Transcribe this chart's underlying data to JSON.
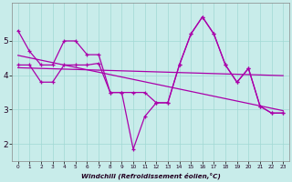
{
  "bg_color": "#c8ecea",
  "line_color": "#aa00aa",
  "xlabel": "Windchill (Refroidissement éolien,°C)",
  "x": [
    0,
    1,
    2,
    3,
    4,
    5,
    6,
    7,
    8,
    9,
    10,
    11,
    12,
    13,
    14,
    15,
    16,
    17,
    18,
    19,
    20,
    21,
    22,
    23
  ],
  "series1": [
    5.3,
    4.7,
    4.3,
    4.3,
    5.0,
    5.0,
    4.6,
    4.6,
    3.5,
    3.5,
    3.5,
    3.5,
    3.2,
    3.2,
    4.3,
    5.2,
    5.7,
    5.2,
    4.3,
    3.8,
    4.2,
    3.1,
    2.9,
    2.9
  ],
  "series2": [
    4.3,
    4.3,
    3.8,
    3.8,
    4.3,
    4.3,
    4.3,
    4.35,
    3.5,
    3.5,
    1.85,
    2.8,
    3.2,
    3.2,
    4.3,
    5.2,
    5.7,
    5.2,
    4.3,
    3.8,
    4.2,
    3.1,
    2.9,
    2.9
  ],
  "linreg1": [
    4.58,
    4.51,
    4.44,
    4.37,
    4.3,
    4.23,
    4.16,
    4.09,
    4.02,
    3.95,
    3.88,
    3.81,
    3.74,
    3.67,
    3.6,
    3.53,
    3.46,
    3.39,
    3.32,
    3.25,
    3.18,
    3.11,
    3.04,
    2.97
  ],
  "linreg2": [
    4.22,
    4.21,
    4.2,
    4.19,
    4.18,
    4.17,
    4.16,
    4.15,
    4.14,
    4.13,
    4.12,
    4.11,
    4.1,
    4.09,
    4.08,
    4.07,
    4.06,
    4.05,
    4.04,
    4.03,
    4.02,
    4.01,
    4.0,
    3.99
  ],
  "ylim": [
    1.5,
    6.1
  ],
  "xlim": [
    -0.5,
    23.5
  ],
  "yticks": [
    2,
    3,
    4,
    5
  ],
  "xticks": [
    0,
    1,
    2,
    3,
    4,
    5,
    6,
    7,
    8,
    9,
    10,
    11,
    12,
    13,
    14,
    15,
    16,
    17,
    18,
    19,
    20,
    21,
    22,
    23
  ],
  "grid_color": "#a0d8d4",
  "marker": "+"
}
